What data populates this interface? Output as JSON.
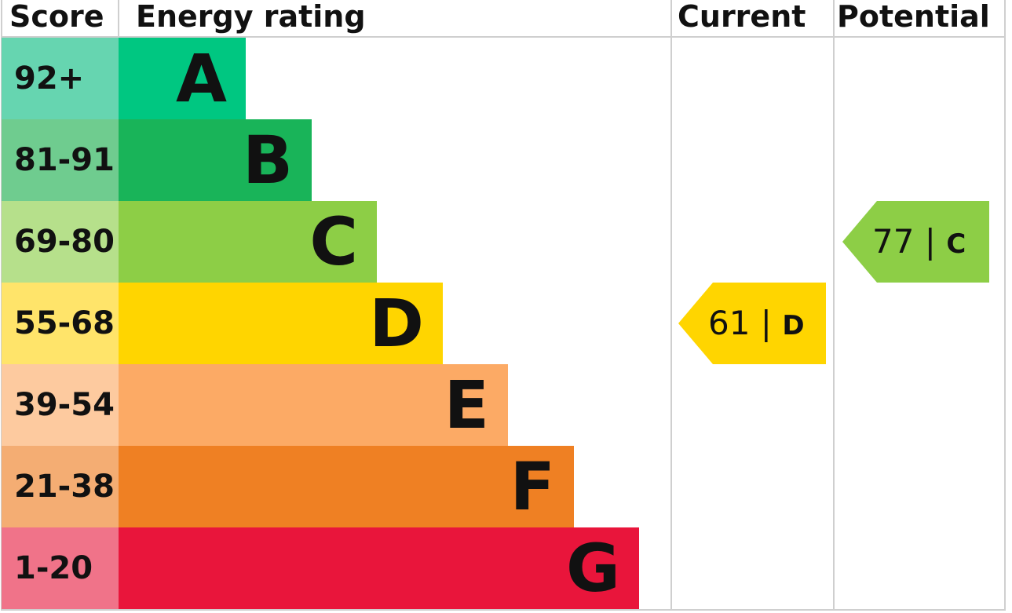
{
  "headers": {
    "score": "Score",
    "energy_rating": "Energy rating",
    "current": "Current",
    "potential": "Potential"
  },
  "chart_data": {
    "type": "bar",
    "categories": [
      "A",
      "B",
      "C",
      "D",
      "E",
      "F",
      "G"
    ],
    "score_ranges": [
      "92+",
      "81-91",
      "69-80",
      "55-68",
      "39-54",
      "21-38",
      "1-20"
    ],
    "band_colors": [
      "#00c781",
      "#19b459",
      "#8dce46",
      "#ffd500",
      "#fcaa65",
      "#ef8023",
      "#e9153b"
    ],
    "score_colors": [
      "#66d5b0",
      "#6fcc8f",
      "#b6e08b",
      "#ffe46a",
      "#fdca9f",
      "#f4ad73",
      "#f07389"
    ],
    "current": {
      "score": "61",
      "rating": "D",
      "color": "#ffd500"
    },
    "potential": {
      "score": "77",
      "rating": "C",
      "color": "#8dce46"
    }
  }
}
